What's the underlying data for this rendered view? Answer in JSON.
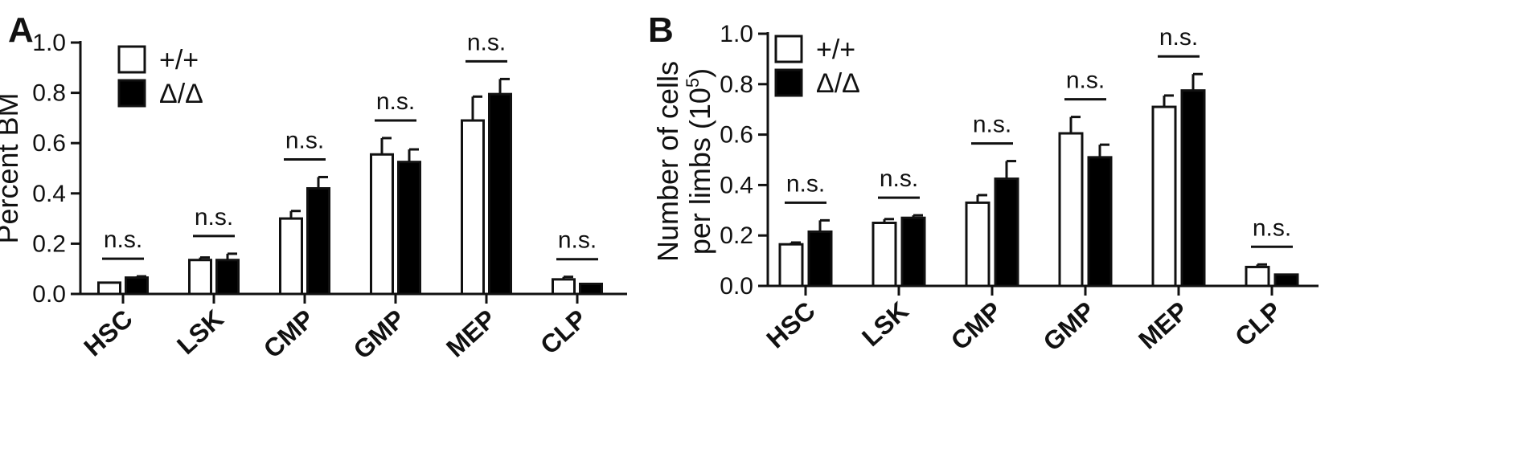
{
  "legend": {
    "wt_label": "+/+",
    "mut_label": "Δ/Δ"
  },
  "colors": {
    "wt_fill": "#ffffff",
    "mut_fill": "#000000",
    "axis": "#111111"
  },
  "chart_data": [
    {
      "type": "bar",
      "panel": "A",
      "ylabel": "Percent BM",
      "ylim": [
        0,
        1.0
      ],
      "yticks": [
        "0.0",
        "0.2",
        "0.4",
        "0.6",
        "0.8",
        "1.0"
      ],
      "categories": [
        "HSC",
        "LSK",
        "CMP",
        "GMP",
        "MEP",
        "CLP"
      ],
      "series": [
        {
          "name": "+/+",
          "values": [
            0.045,
            0.135,
            0.3,
            0.555,
            0.69,
            0.058
          ],
          "errors": [
            0.0,
            0.01,
            0.03,
            0.065,
            0.095,
            0.01
          ]
        },
        {
          "name": "Δ/Δ",
          "values": [
            0.065,
            0.135,
            0.42,
            0.525,
            0.795,
            0.04
          ],
          "errors": [
            0.005,
            0.025,
            0.045,
            0.05,
            0.06,
            0.0
          ]
        }
      ],
      "annotations": [
        "n.s.",
        "n.s.",
        "n.s.",
        "n.s.",
        "n.s.",
        "n.s."
      ]
    },
    {
      "type": "bar",
      "panel": "B",
      "ylabel_line1": "Number of cells",
      "ylabel_line2": "per limbs (10",
      "ylabel_sup": "5",
      "ylabel_close": ")",
      "ylim": [
        0,
        1.0
      ],
      "yticks": [
        "0.0",
        "0.2",
        "0.4",
        "0.6",
        "0.8",
        "1.0"
      ],
      "categories": [
        "HSC",
        "LSK",
        "CMP",
        "GMP",
        "MEP",
        "CLP"
      ],
      "series": [
        {
          "name": "+/+",
          "values": [
            0.165,
            0.25,
            0.33,
            0.605,
            0.71,
            0.075
          ],
          "errors": [
            0.007,
            0.015,
            0.03,
            0.065,
            0.045,
            0.01
          ]
        },
        {
          "name": "Δ/Δ",
          "values": [
            0.215,
            0.27,
            0.425,
            0.51,
            0.775,
            0.045
          ],
          "errors": [
            0.045,
            0.01,
            0.07,
            0.05,
            0.065,
            0.0
          ]
        }
      ],
      "annotations": [
        "n.s.",
        "n.s.",
        "n.s.",
        "n.s.",
        "n.s.",
        "n.s."
      ]
    }
  ]
}
